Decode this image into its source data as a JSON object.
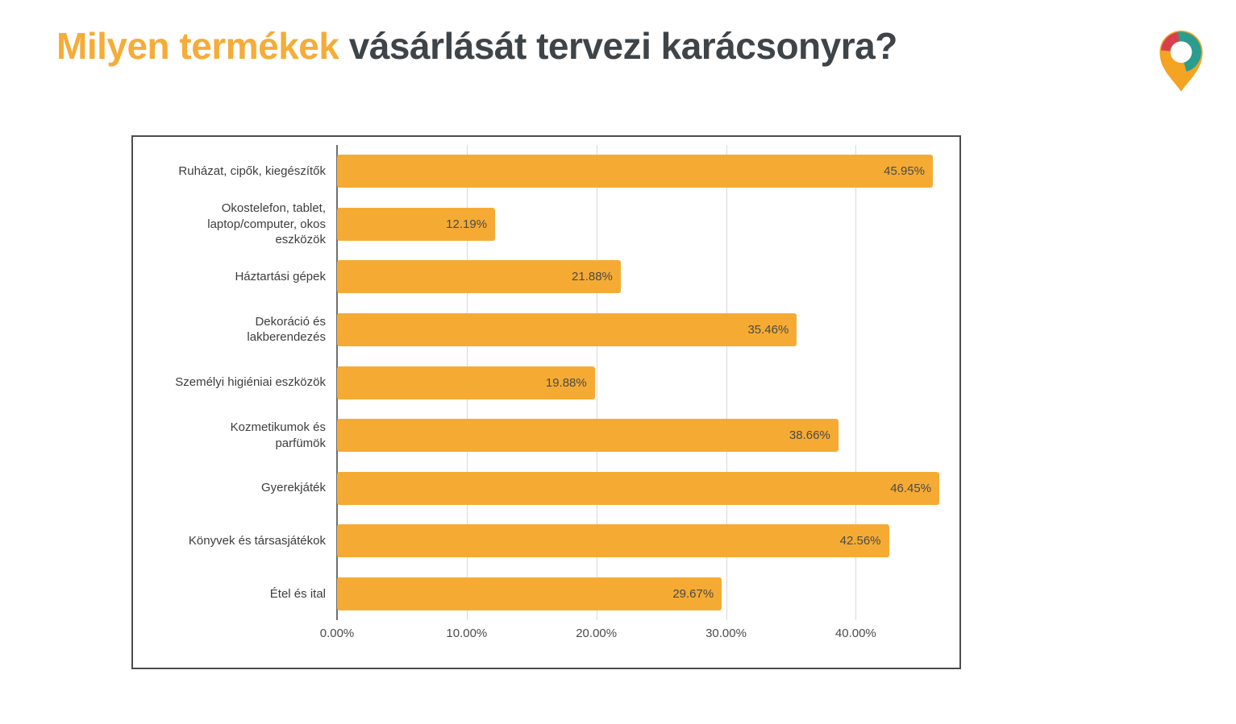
{
  "header": {
    "title_highlight": "Milyen termékek",
    "title_rest": " vásárlását tervezi karácsonyra?",
    "highlight_color": "#f5ac38",
    "title_color": "#3f4448",
    "logo": {
      "icon": "location-pin-logo",
      "colors": {
        "red": "#d7404e",
        "teal": "#2a9d8f",
        "orange": "#f5a322"
      }
    }
  },
  "chart_data": {
    "type": "bar",
    "orientation": "horizontal",
    "title": "Milyen termékek vásárlását tervezi karácsonyra?",
    "categories": [
      "Ruházat, cipők, kiegészítők",
      "Okostelefon, tablet, laptop/computer, okos eszközök",
      "Háztartási gépek",
      "Dekoráció és lakberendezés",
      "Személyi higiéniai eszközök",
      "Kozmetikumok és parfümök",
      "Gyerekjáték",
      "Könyvek és társasjátékok",
      "Étel és ital"
    ],
    "categories_display": [
      "Ruházat, cipők, kiegészítők",
      "Okostelefon, tablet,\nlaptop/computer, okos\neszközök",
      "Háztartási gépek",
      "Dekoráció és\nlakberendezés",
      "Személyi higiéniai eszközök",
      "Kozmetikumok és\nparfümök",
      "Gyerekjáték",
      "Könyvek és társasjátékok",
      "Étel és ital"
    ],
    "values": [
      45.95,
      12.19,
      21.88,
      35.46,
      19.88,
      38.66,
      46.45,
      42.56,
      29.67
    ],
    "value_labels": [
      "45.95%",
      "12.19%",
      "21.88%",
      "35.46%",
      "19.88%",
      "38.66%",
      "46.45%",
      "42.56%",
      "29.67%"
    ],
    "bar_color": "#f5ab33",
    "xlabel": "",
    "ylabel": "",
    "xlim": [
      0,
      48
    ],
    "x_ticks": [
      "0.00%",
      "10.00%",
      "20.00%",
      "30.00%",
      "40.00%"
    ],
    "x_tick_values": [
      0,
      10,
      20,
      30,
      40
    ],
    "grid": true,
    "value_label_position": "inside-end",
    "legend": "none"
  }
}
